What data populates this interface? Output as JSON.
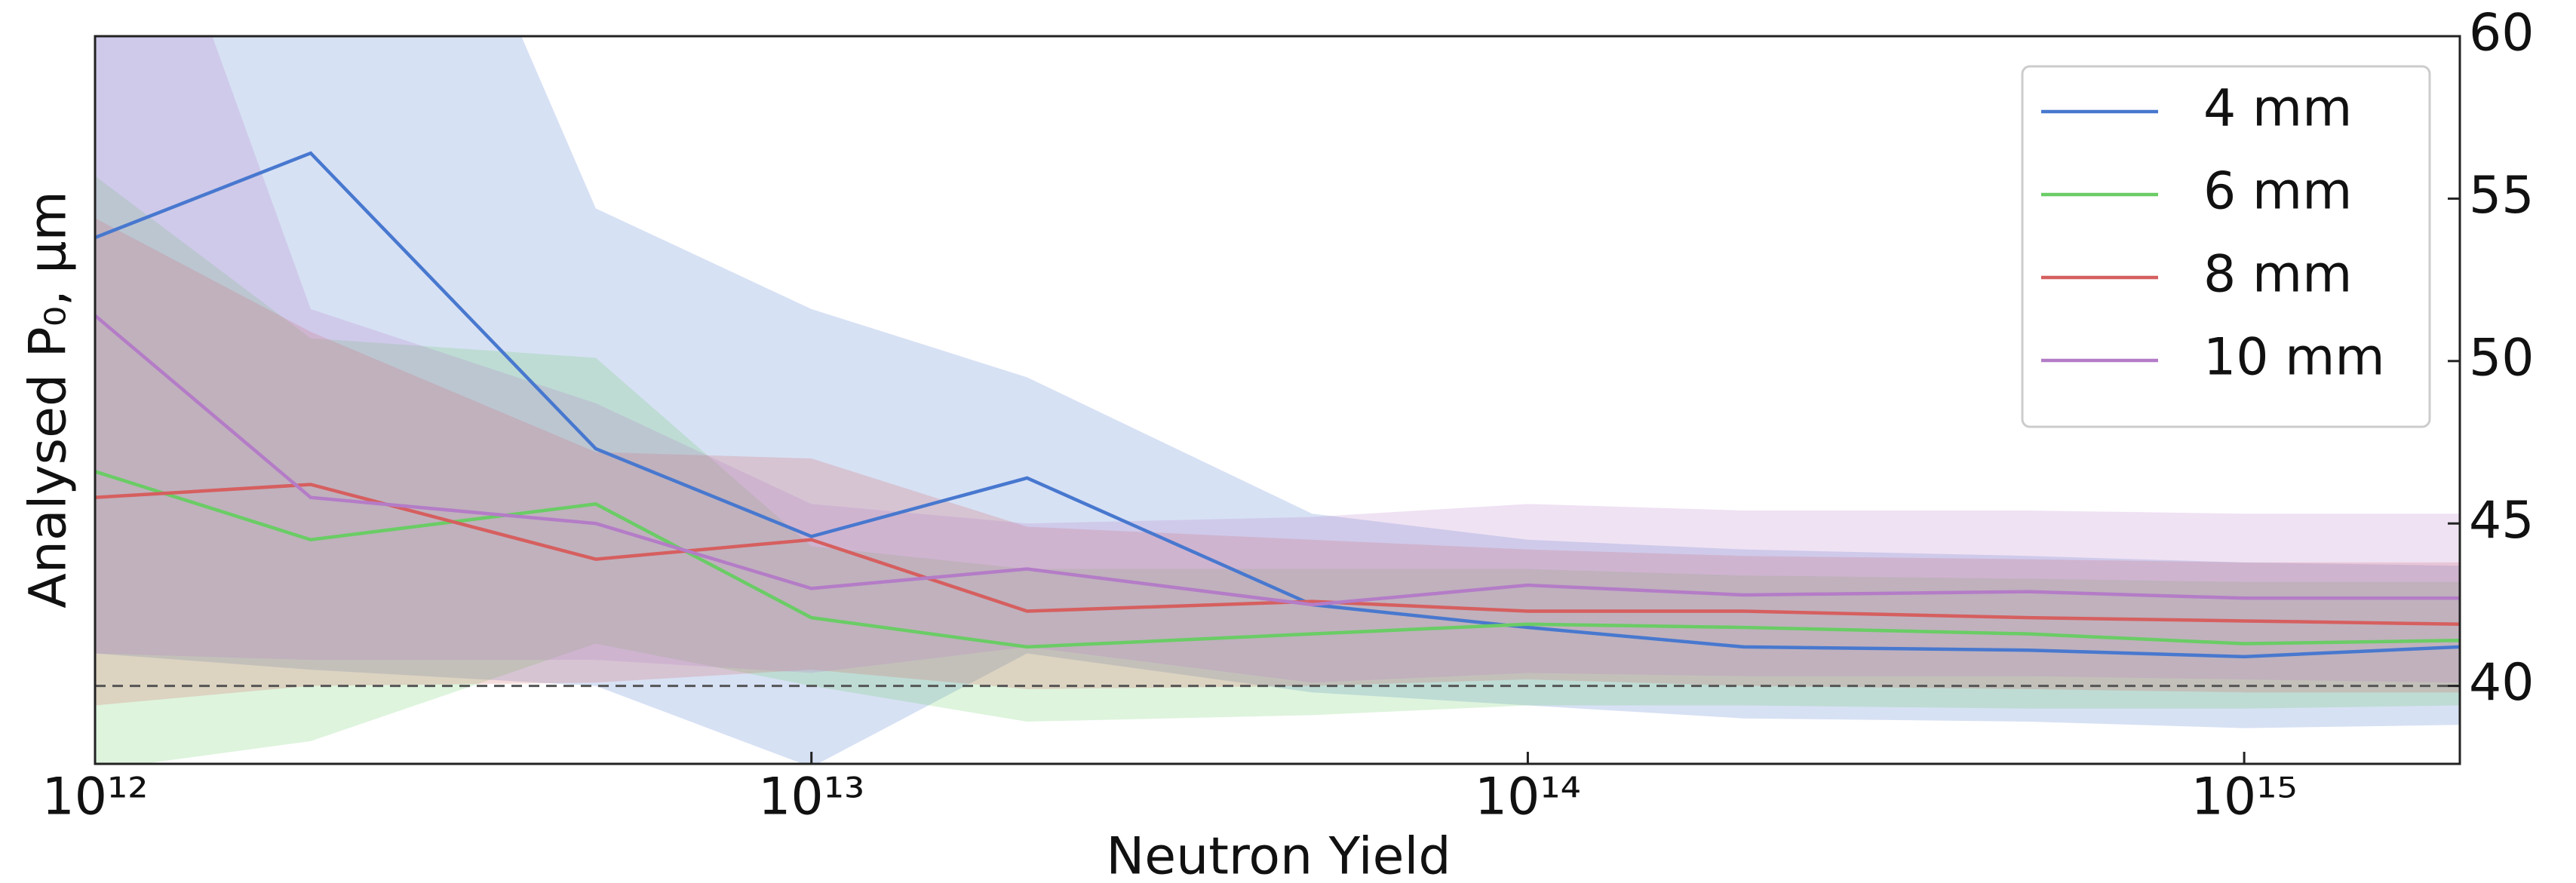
{
  "chart_data": {
    "type": "line",
    "xlabel": "Neutron Yield",
    "ylabel": "Analysed P₀, µm",
    "x": [
      1000000000000.0,
      2000000000000.0,
      5000000000000.0,
      10000000000000.0,
      20000000000000.0,
      50000000000000.0,
      100000000000000.0,
      200000000000000.0,
      500000000000000.0,
      1000000000000000.0,
      2000000000000000.0
    ],
    "xscale": "log",
    "xlim": [
      1000000000000.0,
      2000000000000000.0
    ],
    "xticks": [
      {
        "value": 1000000000000.0,
        "label": "10¹²"
      },
      {
        "value": 10000000000000.0,
        "label": "10¹³"
      },
      {
        "value": 100000000000000.0,
        "label": "10¹⁴"
      },
      {
        "value": 1000000000000000.0,
        "label": "10¹⁵"
      }
    ],
    "ylim": [
      37.6,
      60
    ],
    "yticks": [
      40,
      45,
      50,
      55,
      60
    ],
    "yaxis_side": "right",
    "hline": 40,
    "legend": "upper right",
    "series": [
      {
        "name": "4 mm",
        "color": "#4878cf",
        "values": [
          53.8,
          56.4,
          47.3,
          44.6,
          46.4,
          42.5,
          41.8,
          41.2,
          41.1,
          40.9,
          41.2
        ],
        "upper": [
          70,
          75,
          54.7,
          51.6,
          49.5,
          45.3,
          44.5,
          44.2,
          44.0,
          43.8,
          43.7
        ],
        "lower": [
          41.0,
          40.5,
          40.0,
          37.5,
          41.0,
          39.8,
          39.4,
          39.0,
          38.9,
          38.7,
          38.8
        ]
      },
      {
        "name": "6 mm",
        "color": "#6acc65",
        "values": [
          46.6,
          44.5,
          45.6,
          42.1,
          41.2,
          41.6,
          41.9,
          41.8,
          41.6,
          41.3,
          41.4
        ],
        "upper": [
          55.7,
          50.7,
          50.1,
          44.3,
          43.6,
          43.6,
          43.6,
          43.4,
          43.3,
          43.2,
          43.2
        ],
        "lower": [
          37.4,
          38.3,
          41.3,
          40.0,
          38.9,
          39.1,
          39.4,
          39.4,
          39.3,
          39.3,
          39.4
        ]
      },
      {
        "name": "8 mm",
        "color": "#d65f5f",
        "values": [
          45.8,
          46.2,
          43.9,
          44.5,
          42.3,
          42.6,
          42.3,
          42.3,
          42.1,
          42.0,
          41.9
        ],
        "upper": [
          54.4,
          50.9,
          47.2,
          47.0,
          44.9,
          44.5,
          44.2,
          44.0,
          43.9,
          43.8,
          43.8
        ],
        "lower": [
          39.4,
          40.0,
          40.1,
          40.5,
          39.9,
          40.0,
          40.2,
          40.0,
          39.9,
          39.8,
          39.8
        ]
      },
      {
        "name": "10 mm",
        "color": "#b47cc7",
        "values": [
          51.4,
          45.8,
          45.0,
          43.0,
          43.6,
          42.5,
          43.1,
          42.8,
          42.9,
          42.7,
          42.7
        ],
        "upper": [
          70,
          51.6,
          48.7,
          45.6,
          45.0,
          45.2,
          45.6,
          45.4,
          45.4,
          45.3,
          45.3
        ],
        "lower": [
          41.0,
          40.8,
          40.8,
          40.4,
          41.2,
          40.1,
          40.4,
          40.3,
          40.3,
          40.2,
          40.1
        ]
      }
    ]
  }
}
